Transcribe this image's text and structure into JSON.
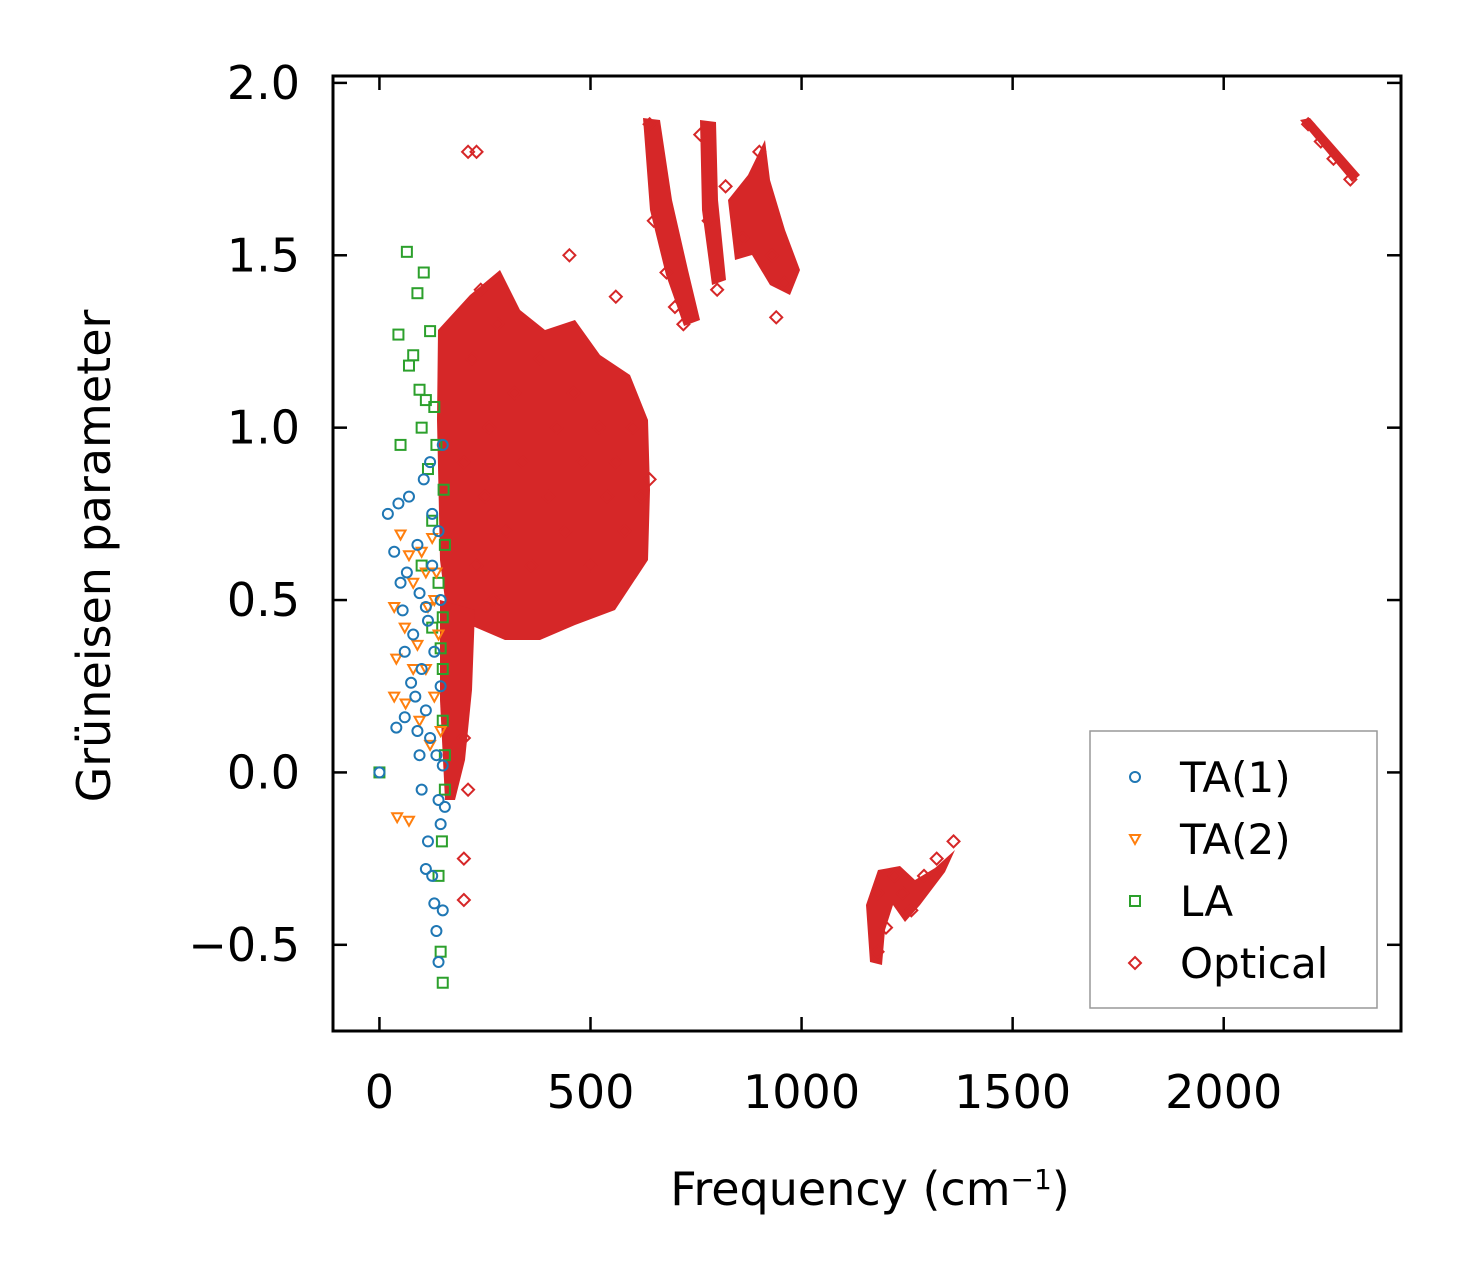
{
  "chart_data": {
    "type": "scatter",
    "title": "",
    "xlabel": "Frequency (cm",
    "xlabel_sup": "−1",
    "xlabel_end": ")",
    "ylabel": "Grüneisen parameter",
    "xlim": [
      -110,
      2420
    ],
    "ylim": [
      -0.75,
      2.02
    ],
    "xticks": [
      0,
      500,
      1000,
      1500,
      2000
    ],
    "xtick_labels": [
      "0",
      "500",
      "1000",
      "1500",
      "2000"
    ],
    "yticks": [
      -0.5,
      0.0,
      0.5,
      1.0,
      1.5,
      2.0
    ],
    "ytick_labels": [
      "−0.5",
      "0.0",
      "0.5",
      "1.0",
      "1.5",
      "2.0"
    ],
    "legend_position": "lower-right",
    "series": [
      {
        "name": "TA(1)",
        "marker": "circle",
        "color": "#1f77b4",
        "points": [
          [
            0,
            0
          ],
          [
            20,
            0.75
          ],
          [
            35,
            0.64
          ],
          [
            45,
            0.78
          ],
          [
            50,
            0.55
          ],
          [
            55,
            0.47
          ],
          [
            60,
            0.35
          ],
          [
            65,
            0.58
          ],
          [
            70,
            0.8
          ],
          [
            75,
            0.26
          ],
          [
            80,
            0.4
          ],
          [
            85,
            0.22
          ],
          [
            90,
            0.66
          ],
          [
            95,
            0.52
          ],
          [
            100,
            0.3
          ],
          [
            100,
            -0.05
          ],
          [
            105,
            0.85
          ],
          [
            110,
            0.18
          ],
          [
            115,
            0.44
          ],
          [
            115,
            -0.2
          ],
          [
            120,
            0.9
          ],
          [
            120,
            0.1
          ],
          [
            125,
            0.6
          ],
          [
            125,
            -0.3
          ],
          [
            130,
            0.35
          ],
          [
            130,
            -0.38
          ],
          [
            135,
            0.05
          ],
          [
            135,
            -0.46
          ],
          [
            140,
            0.7
          ],
          [
            140,
            -0.55
          ],
          [
            145,
            0.25
          ],
          [
            145,
            -0.15
          ],
          [
            150,
            0.95
          ],
          [
            150,
            -0.4
          ],
          [
            150,
            0.02
          ],
          [
            155,
            -0.1
          ],
          [
            40,
            0.13
          ],
          [
            60,
            0.16
          ],
          [
            90,
            0.12
          ],
          [
            110,
            0.48
          ],
          [
            125,
            0.75
          ],
          [
            110,
            -0.28
          ],
          [
            140,
            -0.08
          ],
          [
            95,
            0.05
          ],
          [
            145,
            0.5
          ]
        ]
      },
      {
        "name": "TA(2)",
        "marker": "triangle-down",
        "color": "#ff7f0e",
        "points": [
          [
            35,
            0.48
          ],
          [
            40,
            0.33
          ],
          [
            42,
            -0.13
          ],
          [
            50,
            0.69
          ],
          [
            60,
            0.42
          ],
          [
            62,
            0.2
          ],
          [
            70,
            0.63
          ],
          [
            70,
            -0.14
          ],
          [
            80,
            0.55
          ],
          [
            90,
            0.37
          ],
          [
            95,
            0.15
          ],
          [
            100,
            0.64
          ],
          [
            110,
            0.3
          ],
          [
            115,
            0.48
          ],
          [
            120,
            0.08
          ],
          [
            125,
            0.68
          ],
          [
            130,
            0.22
          ],
          [
            135,
            0.58
          ],
          [
            140,
            0.4
          ],
          [
            145,
            0.12
          ],
          [
            35,
            0.22
          ],
          [
            80,
            0.3
          ],
          [
            110,
            0.58
          ],
          [
            130,
            0.5
          ]
        ]
      },
      {
        "name": "LA",
        "marker": "square",
        "color": "#2ca02c",
        "points": [
          [
            0,
            0
          ],
          [
            65,
            1.51
          ],
          [
            70,
            1.18
          ],
          [
            80,
            1.21
          ],
          [
            90,
            1.39
          ],
          [
            95,
            1.11
          ],
          [
            100,
            1.0
          ],
          [
            105,
            1.45
          ],
          [
            110,
            1.08
          ],
          [
            115,
            0.88
          ],
          [
            120,
            1.28
          ],
          [
            125,
            0.73
          ],
          [
            130,
            1.06
          ],
          [
            135,
            0.95
          ],
          [
            140,
            0.55
          ],
          [
            140,
            -0.3
          ],
          [
            145,
            0.36
          ],
          [
            145,
            -0.52
          ],
          [
            150,
            0.15
          ],
          [
            150,
            -0.61
          ],
          [
            152,
            0.82
          ],
          [
            155,
            -0.05
          ],
          [
            155,
            0.66
          ],
          [
            150,
            0.45
          ],
          [
            148,
            -0.2
          ],
          [
            45,
            1.27
          ],
          [
            50,
            0.95
          ],
          [
            100,
            0.6
          ],
          [
            125,
            0.42
          ],
          [
            150,
            0.3
          ],
          [
            155,
            0.05
          ]
        ]
      },
      {
        "name": "Optical",
        "marker": "diamond",
        "color": "#d62728",
        "points": [
          [
            200,
            0.9
          ],
          [
            220,
            1.2
          ],
          [
            230,
            0.6
          ],
          [
            240,
            1.4
          ],
          [
            250,
            0.8
          ],
          [
            260,
            1.0
          ],
          [
            270,
            0.5
          ],
          [
            280,
            1.3
          ],
          [
            300,
            0.7
          ],
          [
            320,
            1.1
          ],
          [
            340,
            0.9
          ],
          [
            360,
            0.6
          ],
          [
            380,
            1.2
          ],
          [
            400,
            0.8
          ],
          [
            420,
            1.0
          ],
          [
            440,
            0.7
          ],
          [
            460,
            1.1
          ],
          [
            480,
            0.9
          ],
          [
            500,
            0.6
          ],
          [
            520,
            1.0
          ],
          [
            540,
            0.8
          ],
          [
            560,
            0.9
          ],
          [
            580,
            0.7
          ],
          [
            600,
            1.0
          ],
          [
            620,
            0.8
          ],
          [
            640,
            0.85
          ],
          [
            200,
            0.1
          ],
          [
            210,
            -0.05
          ],
          [
            200,
            -0.25
          ],
          [
            200,
            -0.37
          ],
          [
            210,
            1.8
          ],
          [
            230,
            1.8
          ],
          [
            450,
            1.5
          ],
          [
            560,
            1.38
          ],
          [
            640,
            1.88
          ],
          [
            650,
            1.6
          ],
          [
            680,
            1.45
          ],
          [
            700,
            1.35
          ],
          [
            720,
            1.3
          ],
          [
            760,
            1.85
          ],
          [
            780,
            1.6
          ],
          [
            800,
            1.4
          ],
          [
            820,
            1.7
          ],
          [
            860,
            1.55
          ],
          [
            900,
            1.8
          ],
          [
            930,
            1.5
          ],
          [
            960,
            1.42
          ],
          [
            940,
            1.32
          ],
          [
            1180,
            -0.52
          ],
          [
            1180,
            -0.35
          ],
          [
            1200,
            -0.45
          ],
          [
            1220,
            -0.3
          ],
          [
            1240,
            -0.35
          ],
          [
            1260,
            -0.4
          ],
          [
            1290,
            -0.3
          ],
          [
            1320,
            -0.25
          ],
          [
            1360,
            -0.2
          ],
          [
            2200,
            1.88
          ],
          [
            2230,
            1.83
          ],
          [
            2260,
            1.78
          ],
          [
            2300,
            1.72
          ]
        ]
      }
    ]
  }
}
